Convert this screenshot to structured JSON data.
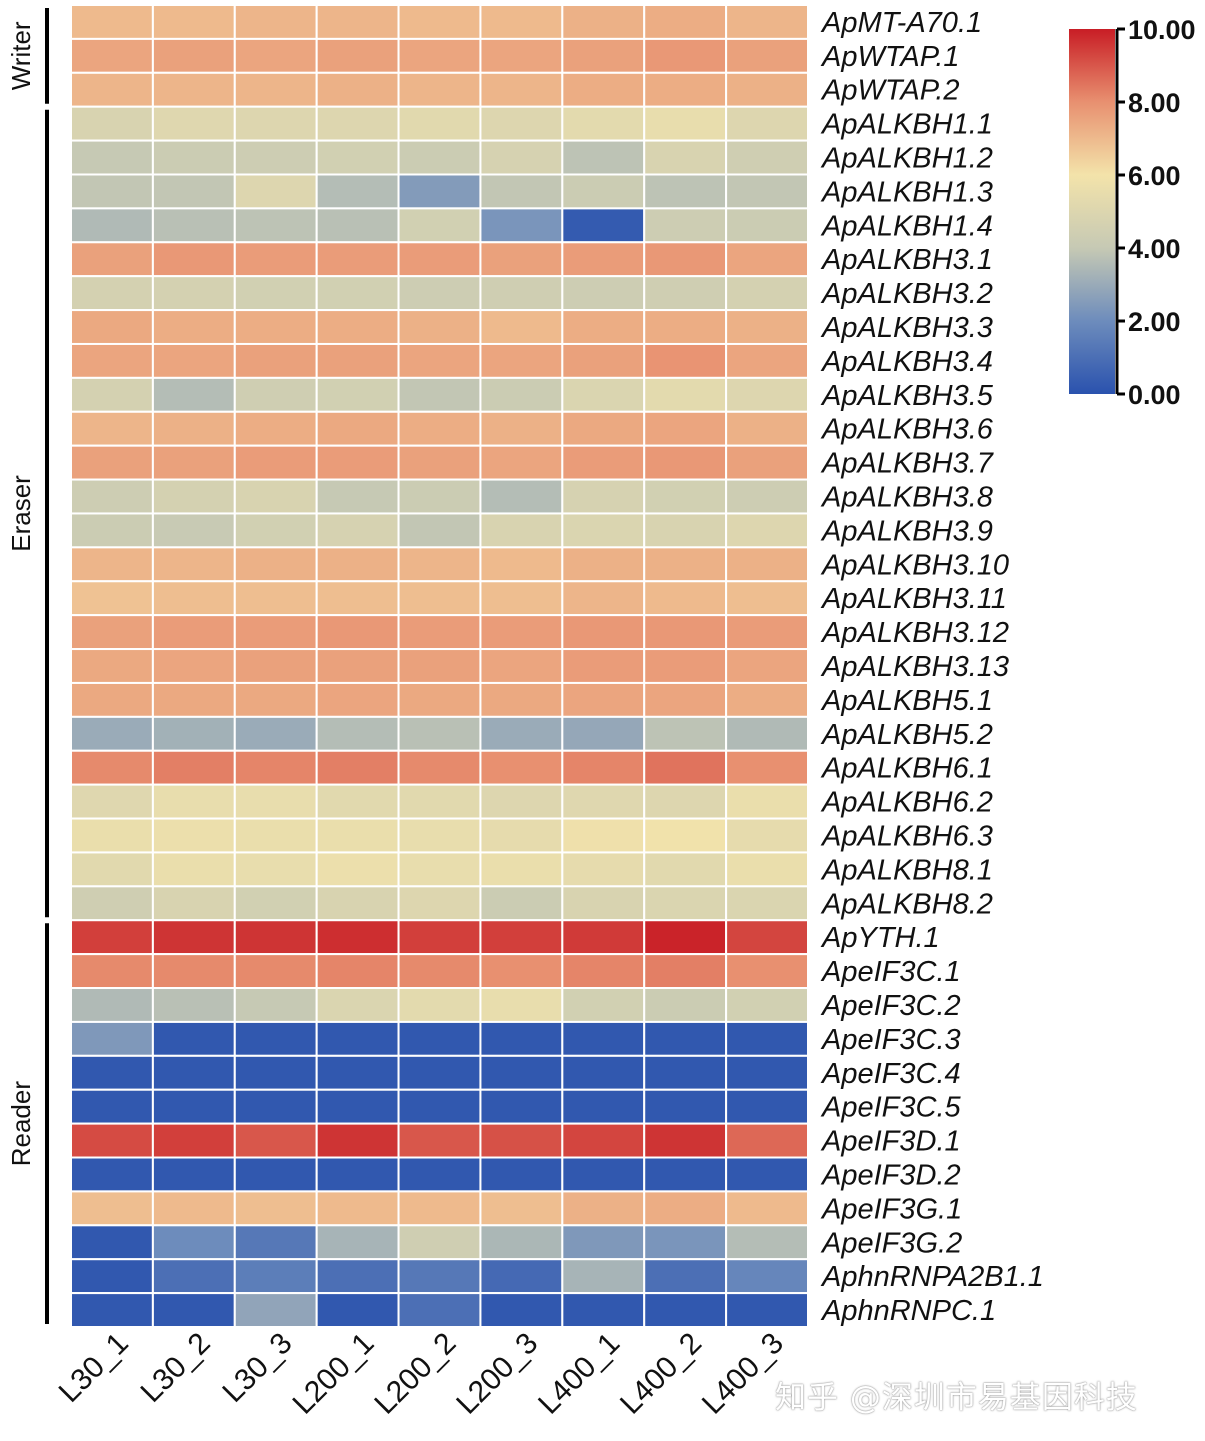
{
  "chart_data": {
    "type": "heatmap",
    "columns": [
      "L30_1",
      "L30_2",
      "L30_3",
      "L200_1",
      "L200_2",
      "L200_3",
      "L400_1",
      "L400_2",
      "L400_3"
    ],
    "rows": [
      "ApMT-A70.1",
      "ApWTAP.1",
      "ApWTAP.2",
      "ApALKBH1.1",
      "ApALKBH1.2",
      "ApALKBH1.3",
      "ApALKBH1.4",
      "ApALKBH3.1",
      "ApALKBH3.2",
      "ApALKBH3.3",
      "ApALKBH3.4",
      "ApALKBH3.5",
      "ApALKBH3.6",
      "ApALKBH3.7",
      "ApALKBH3.8",
      "ApALKBH3.9",
      "ApALKBH3.10",
      "ApALKBH3.11",
      "ApALKBH3.12",
      "ApALKBH3.13",
      "ApALKBH5.1",
      "ApALKBH5.2",
      "ApALKBH6.1",
      "ApALKBH6.2",
      "ApALKBH6.3",
      "ApALKBH8.1",
      "ApALKBH8.2",
      "ApYTH.1",
      "ApeIF3C.1",
      "ApeIF3C.2",
      "ApeIF3C.3",
      "ApeIF3C.4",
      "ApeIF3C.5",
      "ApeIF3D.1",
      "ApeIF3D.2",
      "ApeIF3G.1",
      "ApeIF3G.2",
      "AphnRNPA2B1.1",
      "AphnRNPC.1"
    ],
    "values": [
      [
        7.0,
        7.0,
        7.1,
        7.1,
        7.0,
        7.0,
        7.2,
        7.3,
        7.1
      ],
      [
        7.5,
        7.6,
        7.5,
        7.6,
        7.5,
        7.5,
        7.6,
        7.8,
        7.6
      ],
      [
        7.1,
        7.1,
        7.1,
        7.2,
        7.1,
        7.1,
        7.3,
        7.3,
        7.2
      ],
      [
        4.8,
        5.1,
        5.0,
        5.0,
        5.2,
        5.0,
        5.3,
        5.5,
        5.0
      ],
      [
        4.0,
        4.2,
        4.3,
        4.5,
        4.2,
        4.7,
        3.8,
        4.8,
        4.4
      ],
      [
        3.9,
        3.9,
        5.0,
        3.6,
        2.5,
        3.9,
        4.2,
        3.8,
        3.9
      ],
      [
        3.5,
        3.7,
        3.8,
        3.7,
        4.5,
        2.3,
        0.3,
        4.3,
        4.2
      ],
      [
        7.6,
        7.8,
        7.7,
        7.7,
        7.7,
        7.6,
        7.7,
        7.8,
        7.5
      ],
      [
        4.6,
        4.6,
        4.5,
        4.5,
        4.3,
        4.4,
        4.3,
        4.4,
        4.6
      ],
      [
        7.4,
        7.3,
        7.3,
        7.3,
        7.2,
        7.0,
        7.3,
        7.3,
        7.2
      ],
      [
        7.5,
        7.5,
        7.6,
        7.6,
        7.5,
        7.5,
        7.6,
        7.9,
        7.5
      ],
      [
        4.6,
        3.6,
        4.4,
        4.5,
        3.9,
        4.2,
        4.9,
        5.3,
        5.0
      ],
      [
        7.1,
        7.2,
        7.3,
        7.4,
        7.3,
        7.2,
        7.4,
        7.5,
        7.2
      ],
      [
        7.6,
        7.6,
        7.7,
        7.7,
        7.6,
        7.5,
        7.7,
        7.8,
        7.6
      ],
      [
        4.3,
        4.6,
        4.8,
        4.0,
        4.2,
        3.6,
        4.7,
        4.5,
        4.3
      ],
      [
        4.2,
        4.1,
        4.5,
        4.7,
        3.9,
        4.8,
        4.9,
        4.8,
        5.0
      ],
      [
        7.1,
        7.1,
        7.2,
        7.2,
        7.1,
        7.0,
        7.2,
        7.2,
        7.2
      ],
      [
        6.8,
        6.9,
        6.9,
        6.9,
        6.9,
        6.9,
        7.1,
        7.0,
        6.9
      ],
      [
        7.6,
        7.7,
        7.7,
        7.8,
        7.7,
        7.7,
        7.8,
        7.8,
        7.7
      ],
      [
        7.4,
        7.5,
        7.6,
        7.6,
        7.6,
        7.5,
        7.7,
        7.7,
        7.5
      ],
      [
        7.4,
        7.4,
        7.4,
        7.5,
        7.4,
        7.4,
        7.5,
        7.5,
        7.3
      ],
      [
        3.0,
        3.2,
        3.0,
        3.6,
        3.7,
        3.0,
        2.9,
        3.8,
        3.5
      ],
      [
        8.1,
        8.3,
        8.2,
        8.3,
        8.1,
        8.0,
        8.2,
        8.5,
        8.0
      ],
      [
        5.1,
        5.5,
        5.5,
        5.2,
        5.2,
        5.0,
        5.1,
        5.0,
        5.6
      ],
      [
        5.6,
        5.7,
        5.6,
        5.6,
        5.5,
        5.4,
        5.8,
        5.9,
        5.4
      ],
      [
        5.2,
        5.6,
        5.5,
        5.7,
        5.5,
        5.6,
        5.4,
        5.2,
        5.6
      ],
      [
        4.4,
        4.8,
        4.5,
        4.8,
        5.0,
        4.2,
        4.8,
        4.9,
        4.9
      ],
      [
        9.4,
        9.6,
        9.6,
        9.7,
        9.4,
        9.4,
        9.5,
        9.9,
        9.3
      ],
      [
        8.1,
        8.1,
        8.1,
        8.2,
        8.1,
        8.0,
        8.2,
        8.3,
        8.0
      ],
      [
        3.5,
        3.7,
        4.0,
        4.9,
        5.3,
        5.5,
        4.5,
        4.2,
        4.5
      ],
      [
        2.4,
        0.2,
        0.2,
        0.2,
        0.2,
        0.2,
        0.2,
        0.2,
        0.2
      ],
      [
        0.2,
        0.2,
        0.2,
        0.2,
        0.2,
        0.2,
        0.2,
        0.2,
        0.2
      ],
      [
        0.2,
        0.2,
        0.2,
        0.2,
        0.2,
        0.2,
        0.2,
        0.2,
        0.2
      ],
      [
        9.2,
        9.4,
        9.0,
        9.6,
        9.0,
        9.1,
        9.3,
        9.6,
        8.7
      ],
      [
        0.2,
        0.2,
        0.2,
        0.2,
        0.2,
        0.2,
        0.2,
        0.2,
        0.2
      ],
      [
        6.9,
        7.0,
        6.9,
        7.0,
        7.0,
        6.9,
        7.2,
        7.3,
        7.0
      ],
      [
        0.2,
        2.0,
        1.3,
        3.3,
        4.4,
        3.4,
        2.4,
        2.3,
        3.6
      ],
      [
        0.2,
        1.0,
        1.5,
        1.0,
        1.3,
        0.8,
        3.3,
        1.0,
        1.8
      ],
      [
        0.2,
        0.2,
        2.8,
        0.2,
        1.0,
        0.2,
        0.2,
        0.2,
        0.2
      ]
    ],
    "groups": [
      {
        "label": "Writer",
        "rows": [
          0,
          2
        ]
      },
      {
        "label": "Eraser",
        "rows": [
          3,
          26
        ]
      },
      {
        "label": "Reader",
        "rows": [
          27,
          38
        ]
      }
    ],
    "colorbar": {
      "min": 0,
      "max": 10,
      "ticks": [
        "0.00",
        "2.00",
        "4.00",
        "6.00",
        "8.00",
        "10.00"
      ],
      "colors": [
        "#2a52ae",
        "#6d8cbc",
        "#c6c9b4",
        "#f3e3aa",
        "#e89070",
        "#c81d25"
      ],
      "placement": "top-right"
    }
  },
  "watermark": "知乎 @深圳市易基因科技"
}
